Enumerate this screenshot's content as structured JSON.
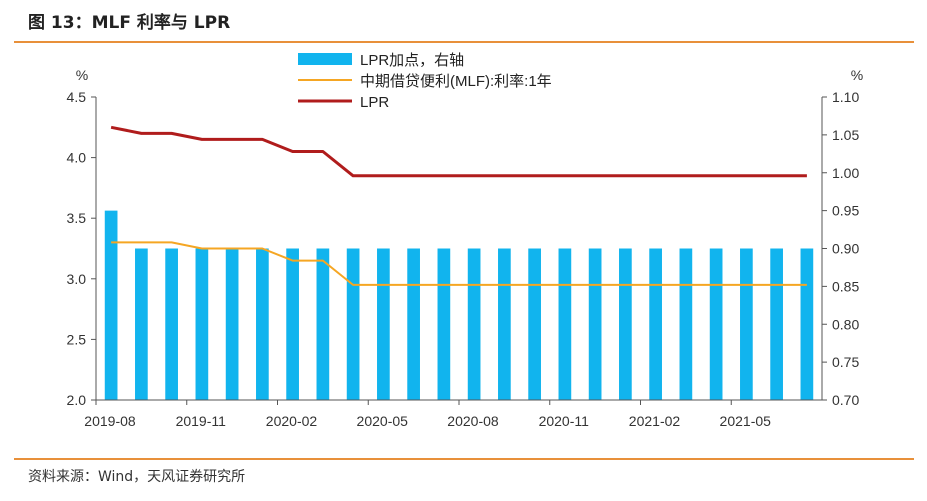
{
  "figure_title": "图 13：MLF 利率与 LPR",
  "source_note": "资料来源：Wind，天风证券研究所",
  "colors": {
    "bar": "#11b4ee",
    "mlf": "#f5a623",
    "lpr": "#b01c1c",
    "accent_rule": "#e8903a"
  },
  "chart_data": {
    "type": "bar",
    "x_tick_labels": [
      "2019-08",
      "2019-11",
      "2020-02",
      "2020-05",
      "2020-08",
      "2020-11",
      "2021-02",
      "2021-05"
    ],
    "categories": [
      "2019-08",
      "2019-09",
      "2019-10",
      "2019-11",
      "2019-12",
      "2020-01",
      "2020-02",
      "2020-03",
      "2020-04",
      "2020-05",
      "2020-06",
      "2020-07",
      "2020-08",
      "2020-09",
      "2020-10",
      "2020-11",
      "2020-12",
      "2021-01",
      "2021-02",
      "2021-03",
      "2021-04",
      "2021-05",
      "2021-06",
      "2021-07"
    ],
    "left_axis": {
      "label": "%",
      "range": [
        2.0,
        4.5
      ],
      "ticks": [
        "2.0",
        "2.5",
        "3.0",
        "3.5",
        "4.0",
        "4.5"
      ]
    },
    "right_axis": {
      "label": "%",
      "range": [
        0.7,
        1.1
      ],
      "ticks": [
        "0.70",
        "0.75",
        "0.80",
        "0.85",
        "0.90",
        "0.95",
        "1.00",
        "1.05",
        "1.10"
      ]
    },
    "legend_position": "top-center",
    "series": [
      {
        "name": "LPR加点，右轴",
        "type": "bar",
        "axis": "right",
        "values": [
          0.95,
          0.9,
          0.9,
          0.9,
          0.9,
          0.9,
          0.9,
          0.9,
          0.9,
          0.9,
          0.9,
          0.9,
          0.9,
          0.9,
          0.9,
          0.9,
          0.9,
          0.9,
          0.9,
          0.9,
          0.9,
          0.9,
          0.9,
          0.9
        ]
      },
      {
        "name": "中期借贷便利(MLF):利率:1年",
        "type": "line",
        "axis": "left",
        "values": [
          3.3,
          3.3,
          3.3,
          3.25,
          3.25,
          3.25,
          3.15,
          3.15,
          2.95,
          2.95,
          2.95,
          2.95,
          2.95,
          2.95,
          2.95,
          2.95,
          2.95,
          2.95,
          2.95,
          2.95,
          2.95,
          2.95,
          2.95,
          2.95
        ]
      },
      {
        "name": "LPR",
        "type": "line",
        "axis": "left",
        "values": [
          4.25,
          4.2,
          4.2,
          4.15,
          4.15,
          4.15,
          4.05,
          4.05,
          3.85,
          3.85,
          3.85,
          3.85,
          3.85,
          3.85,
          3.85,
          3.85,
          3.85,
          3.85,
          3.85,
          3.85,
          3.85,
          3.85,
          3.85,
          3.85
        ]
      }
    ]
  }
}
